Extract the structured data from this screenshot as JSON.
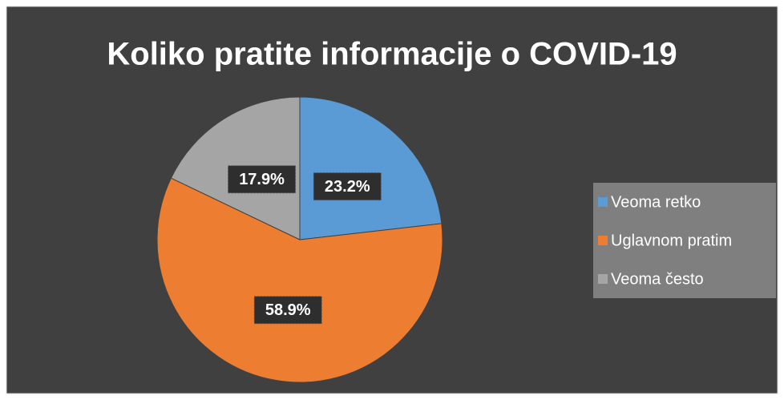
{
  "chart_data": {
    "type": "pie",
    "title": "Koliko pratite informacije o COVID-19",
    "categories": [
      "Veoma retko",
      "Uglavnom pratim",
      "Veoma često"
    ],
    "values": [
      23.2,
      58.9,
      17.9
    ],
    "value_labels": [
      "23.2%",
      "58.9%",
      "17.9%"
    ],
    "colors": [
      "#5b9bd5",
      "#ed7d31",
      "#a5a5a5"
    ],
    "legend": "right"
  }
}
